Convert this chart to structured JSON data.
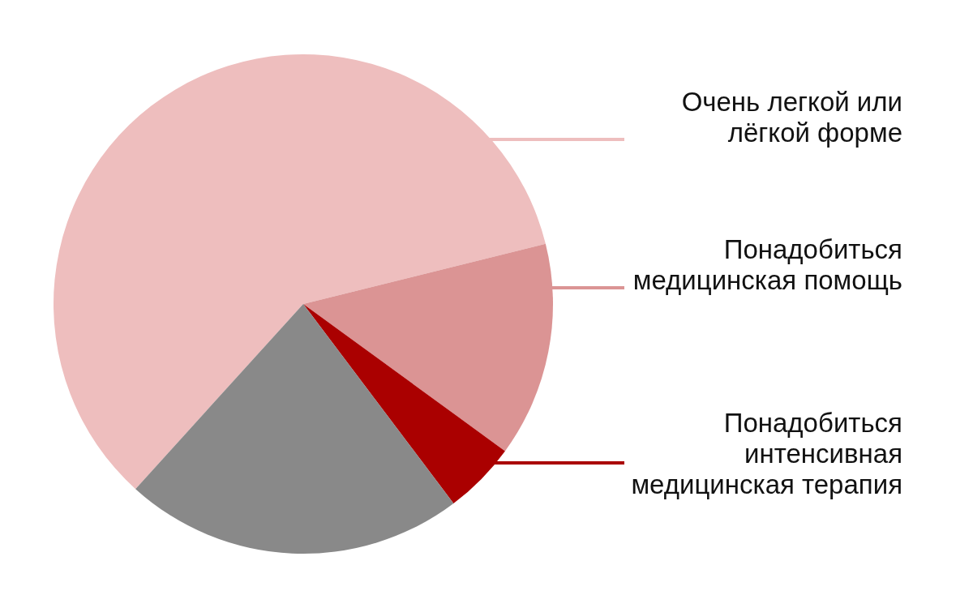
{
  "chart_data": {
    "type": "pie",
    "categories": [
      "Очень легкой или лёгкой форме",
      "Понадобиться медицинская помощь",
      "Понадобиться интенсивная медицинская терапия",
      null
    ],
    "values": [
      59.4,
      13.9,
      4.7,
      22.0
    ],
    "colors": [
      "#eebebe",
      "#db9494",
      "#aa0000",
      "#898989"
    ]
  }
}
